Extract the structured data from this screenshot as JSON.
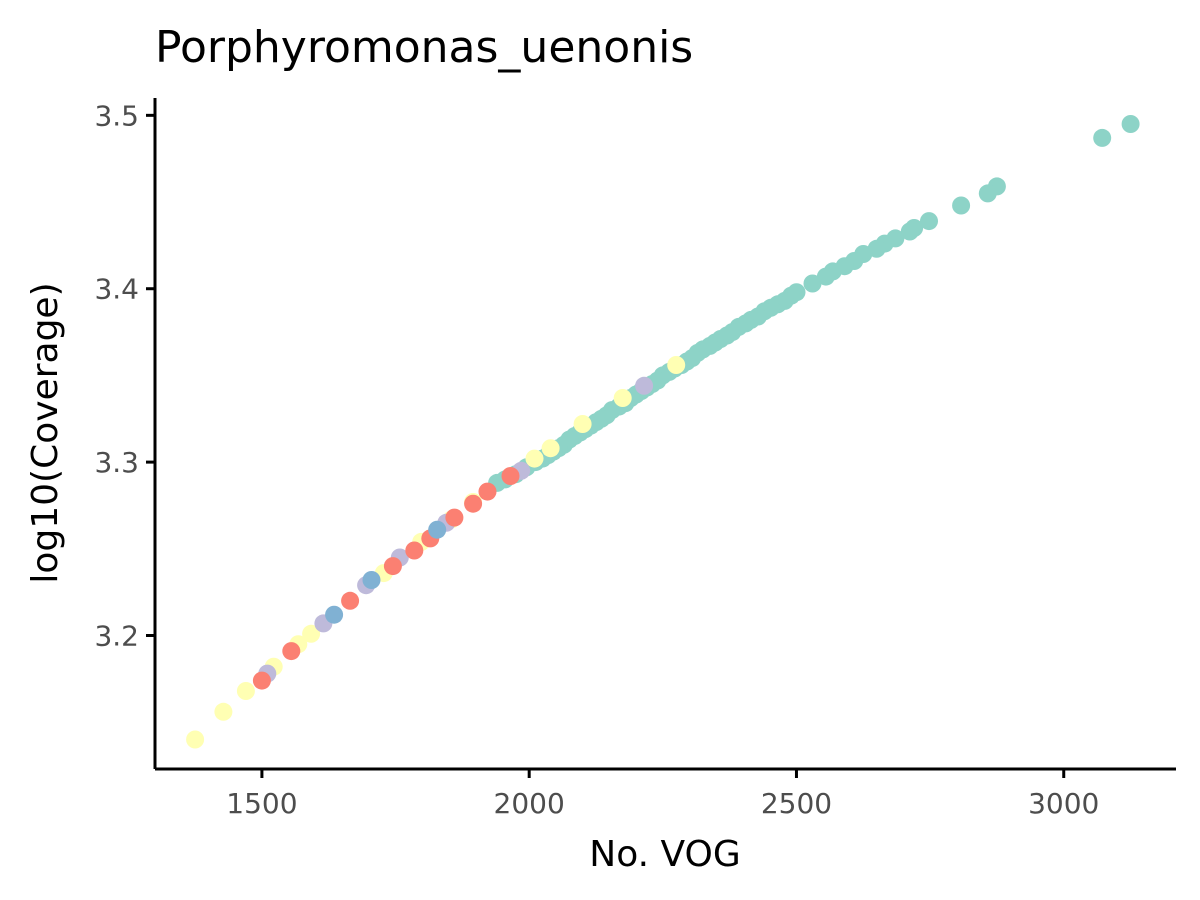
{
  "chart_data": {
    "type": "scatter",
    "title": "Porphyromonas_uenonis",
    "xlabel": "No. VOG",
    "ylabel": "log10(Coverage)",
    "xlim": [
      1300,
      3210
    ],
    "ylim": [
      3.123,
      3.51
    ],
    "x_ticks": [
      1500,
      2000,
      2500,
      3000
    ],
    "x_tick_labels": [
      "1500",
      "2000",
      "2500",
      "3000"
    ],
    "y_ticks": [
      3.2,
      3.3,
      3.4,
      3.5
    ],
    "y_tick_labels": [
      "3.2",
      "3.3",
      "3.4",
      "3.5"
    ],
    "grid": false,
    "legend": "none",
    "colors": [
      "#8DD3C7",
      "#FFFFB3",
      "#BEBADA",
      "#FB8072",
      "#80B1D3"
    ],
    "series": [
      {
        "color": "#8DD3C7",
        "points": [
          [
            3125,
            3.495
          ],
          [
            3072,
            3.487
          ],
          [
            2875,
            3.459
          ],
          [
            2858,
            3.455
          ],
          [
            2808,
            3.448
          ],
          [
            2748,
            3.439
          ],
          [
            2720,
            3.435
          ],
          [
            2712,
            3.433
          ],
          [
            2685,
            3.429
          ],
          [
            2665,
            3.426
          ],
          [
            2650,
            3.423
          ],
          [
            2625,
            3.42
          ],
          [
            2608,
            3.416
          ],
          [
            2590,
            3.413
          ],
          [
            2568,
            3.41
          ],
          [
            2555,
            3.407
          ],
          [
            2530,
            3.403
          ],
          [
            2500,
            3.398
          ],
          [
            2490,
            3.396
          ],
          [
            2478,
            3.393
          ],
          [
            2465,
            3.391
          ],
          [
            2452,
            3.389
          ],
          [
            2440,
            3.387
          ],
          [
            2428,
            3.384
          ],
          [
            2415,
            3.382
          ],
          [
            2405,
            3.38
          ],
          [
            2392,
            3.378
          ],
          [
            2380,
            3.375
          ],
          [
            2370,
            3.373
          ],
          [
            2358,
            3.371
          ],
          [
            2348,
            3.369
          ],
          [
            2338,
            3.367
          ],
          [
            2325,
            3.365
          ],
          [
            2315,
            3.363
          ],
          [
            2305,
            3.36
          ],
          [
            2295,
            3.358
          ],
          [
            2285,
            3.356
          ],
          [
            2272,
            3.354
          ],
          [
            2262,
            3.352
          ],
          [
            2250,
            3.35
          ],
          [
            2240,
            3.347
          ],
          [
            2230,
            3.345
          ],
          [
            2220,
            3.343
          ],
          [
            2210,
            3.341
          ],
          [
            2200,
            3.339
          ],
          [
            2190,
            3.337
          ],
          [
            2180,
            3.334
          ],
          [
            2168,
            3.332
          ],
          [
            2155,
            3.33
          ],
          [
            2145,
            3.327
          ],
          [
            2135,
            3.325
          ],
          [
            2125,
            3.323
          ],
          [
            2115,
            3.321
          ],
          [
            2105,
            3.319
          ],
          [
            2095,
            3.317
          ],
          [
            2085,
            3.315
          ],
          [
            2075,
            3.313
          ],
          [
            2065,
            3.31
          ],
          [
            2055,
            3.308
          ],
          [
            2045,
            3.306
          ],
          [
            2035,
            3.304
          ],
          [
            2025,
            3.302
          ],
          [
            2012,
            3.3
          ],
          [
            1995,
            3.297
          ],
          [
            1975,
            3.293
          ],
          [
            1955,
            3.29
          ],
          [
            1940,
            3.288
          ]
        ]
      },
      {
        "color": "#FFFFB3",
        "points": [
          [
            1375,
            3.14
          ],
          [
            1428,
            3.156
          ],
          [
            1470,
            3.168
          ],
          [
            1522,
            3.182
          ],
          [
            1568,
            3.195
          ],
          [
            1592,
            3.201
          ],
          [
            1728,
            3.236
          ],
          [
            1798,
            3.254
          ],
          [
            1855,
            3.267
          ],
          [
            1895,
            3.277
          ],
          [
            2010,
            3.302
          ],
          [
            2040,
            3.308
          ],
          [
            2100,
            3.322
          ],
          [
            2175,
            3.337
          ],
          [
            2275,
            3.356
          ]
        ]
      },
      {
        "color": "#BEBADA",
        "points": [
          [
            1510,
            3.178
          ],
          [
            1615,
            3.207
          ],
          [
            1695,
            3.229
          ],
          [
            1758,
            3.245
          ],
          [
            1845,
            3.265
          ],
          [
            1985,
            3.295
          ],
          [
            2215,
            3.344
          ]
        ]
      },
      {
        "color": "#FB8072",
        "points": [
          [
            1500,
            3.174
          ],
          [
            1555,
            3.191
          ],
          [
            1665,
            3.22
          ],
          [
            1745,
            3.24
          ],
          [
            1785,
            3.249
          ],
          [
            1815,
            3.256
          ],
          [
            1860,
            3.268
          ],
          [
            1895,
            3.276
          ],
          [
            1922,
            3.283
          ],
          [
            1965,
            3.292
          ]
        ]
      },
      {
        "color": "#80B1D3",
        "points": [
          [
            1635,
            3.212
          ],
          [
            1705,
            3.232
          ],
          [
            1828,
            3.261
          ]
        ]
      }
    ]
  }
}
